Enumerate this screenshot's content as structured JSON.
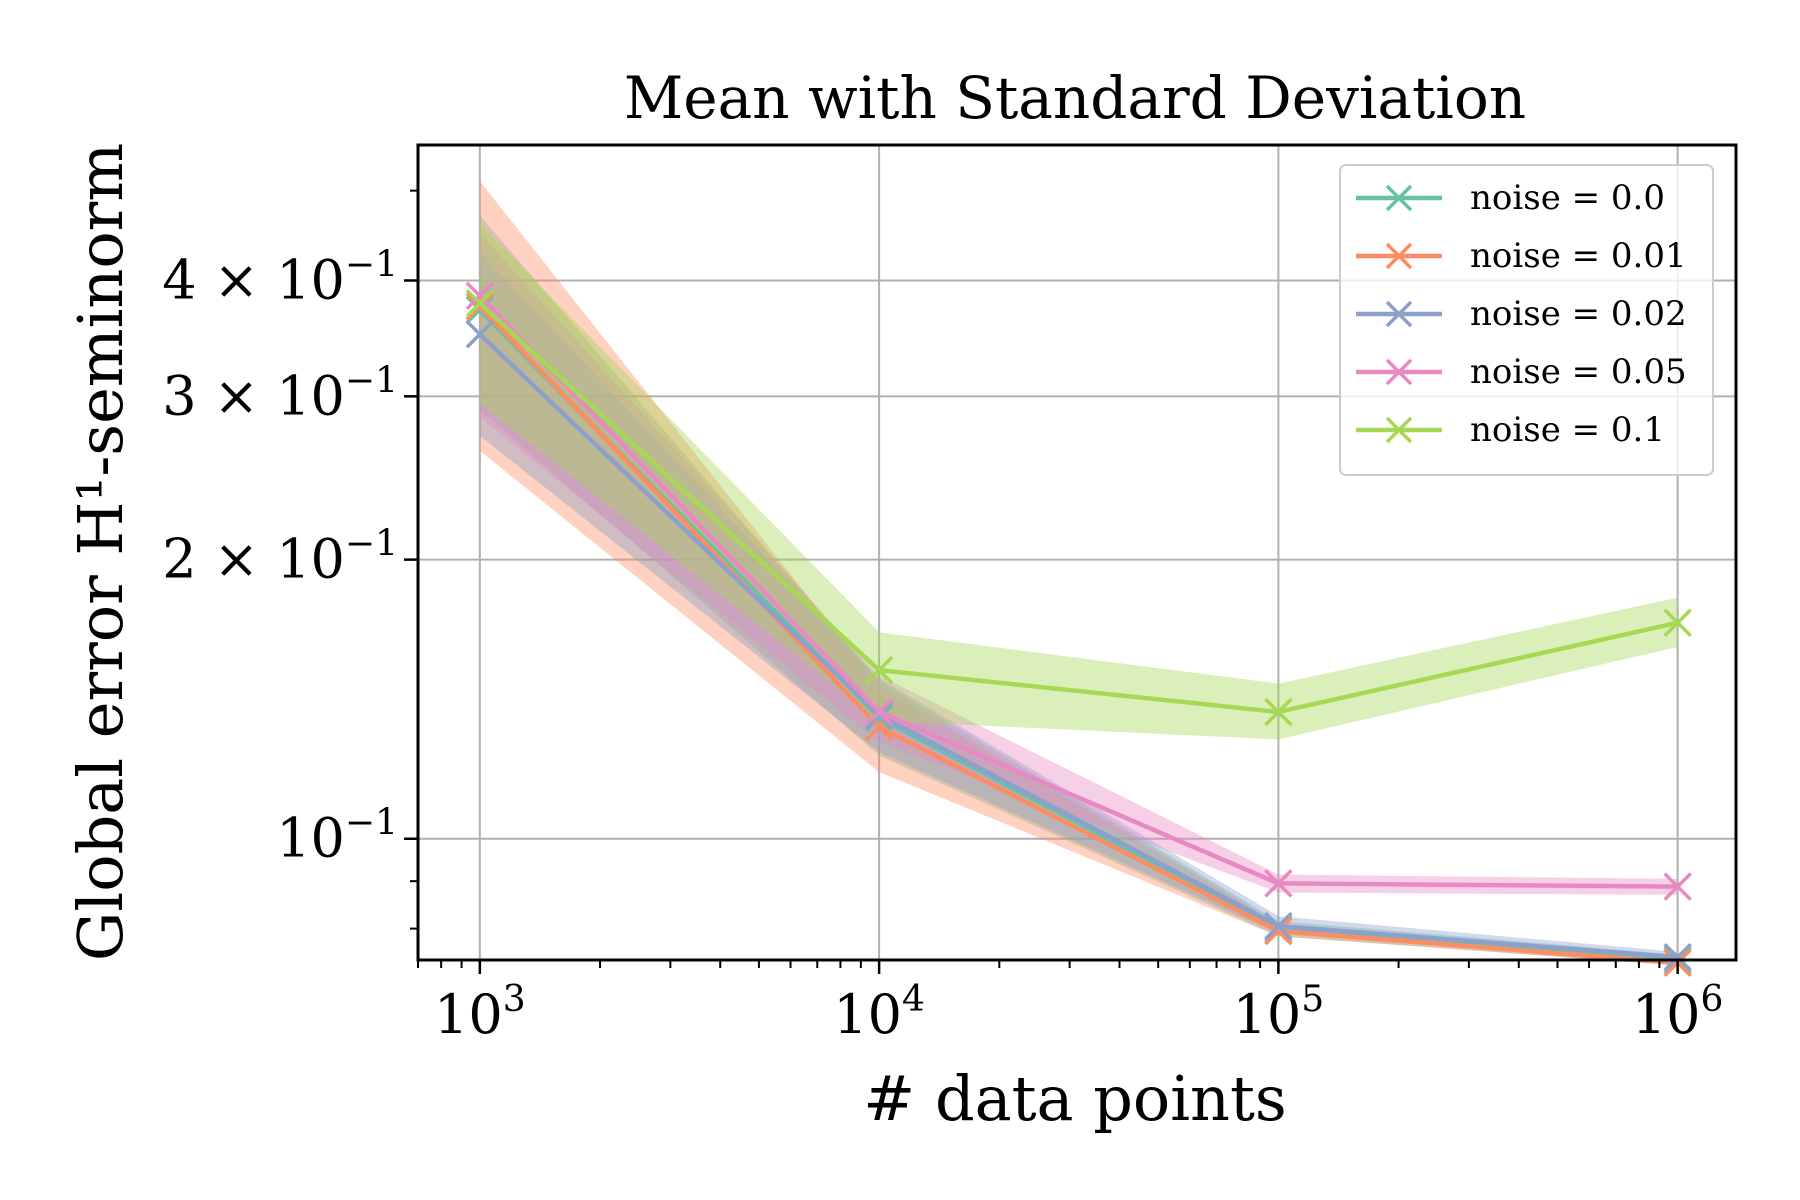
{
  "chart_data": {
    "type": "line",
    "title": "Mean with Standard Deviation",
    "xlabel": "# data points",
    "ylabel": "Global error H¹-seminorm",
    "x_scale": "log",
    "y_scale": "log",
    "x": [
      1000,
      10000,
      100000,
      1000000
    ],
    "x_ticks": [
      {
        "value": 1000,
        "base": "10",
        "exp": "3"
      },
      {
        "value": 10000,
        "base": "10",
        "exp": "4"
      },
      {
        "value": 100000,
        "base": "10",
        "exp": "5"
      },
      {
        "value": 1000000,
        "base": "10",
        "exp": "6"
      }
    ],
    "y_ticks": [
      {
        "value": 0.1,
        "mant": "",
        "base": "10",
        "exp": "−1"
      },
      {
        "value": 0.2,
        "mant": "2 × ",
        "base": "10",
        "exp": "−1"
      },
      {
        "value": 0.3,
        "mant": "3 × ",
        "base": "10",
        "exp": "−1"
      },
      {
        "value": 0.4,
        "mant": "4 × ",
        "base": "10",
        "exp": "−1"
      }
    ],
    "xlim": [
      700,
      1400000
    ],
    "ylim": [
      0.074,
      0.56
    ],
    "grid": true,
    "legend_position": "top-right",
    "band_opacity": 0.4,
    "series": [
      {
        "name": "noise = 0.0",
        "color": "#66c2a5",
        "values": [
          0.372,
          0.135,
          0.08,
          0.074
        ],
        "lower": [
          0.29,
          0.123,
          0.0785,
          0.073
        ],
        "upper": [
          0.47,
          0.148,
          0.0815,
          0.075
        ]
      },
      {
        "name": "noise = 0.01",
        "color": "#fc8d62",
        "values": [
          0.375,
          0.132,
          0.0795,
          0.0735
        ],
        "lower": [
          0.262,
          0.118,
          0.0785,
          0.073
        ],
        "upper": [
          0.512,
          0.146,
          0.081,
          0.0745
        ]
      },
      {
        "name": "noise = 0.02",
        "color": "#8da0cb",
        "values": [
          0.35,
          0.136,
          0.0805,
          0.0745
        ],
        "lower": [
          0.272,
          0.124,
          0.079,
          0.0735
        ],
        "upper": [
          0.43,
          0.149,
          0.0825,
          0.0755
        ]
      },
      {
        "name": "noise = 0.05",
        "color": "#e78ac3",
        "values": [
          0.385,
          0.137,
          0.0895,
          0.0888
        ],
        "lower": [
          0.285,
          0.127,
          0.0875,
          0.087
        ],
        "upper": [
          0.45,
          0.15,
          0.0915,
          0.0905
        ]
      },
      {
        "name": "noise = 0.1",
        "color": "#a6d854",
        "values": [
          0.378,
          0.152,
          0.137,
          0.171
        ],
        "lower": [
          0.295,
          0.134,
          0.128,
          0.161
        ],
        "upper": [
          0.46,
          0.167,
          0.147,
          0.182
        ]
      }
    ]
  }
}
